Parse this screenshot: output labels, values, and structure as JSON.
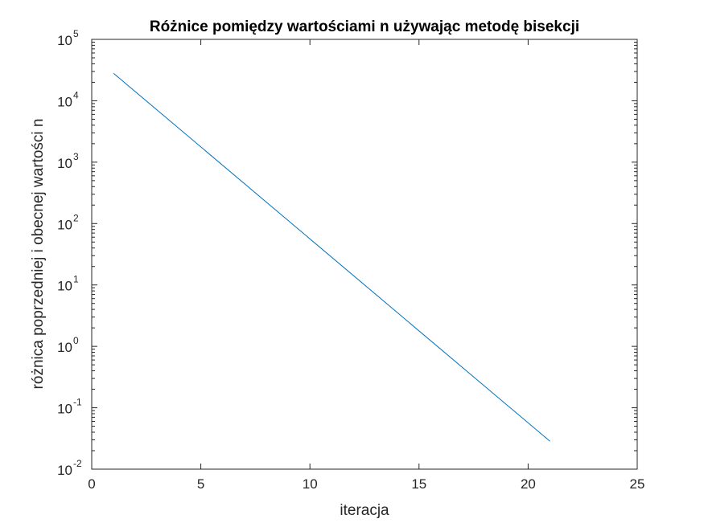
{
  "chart_data": {
    "type": "line",
    "title": "Różnice pomiędzy wartościami n używając metodę bisekcji",
    "xlabel": "iteracja",
    "ylabel": "różnica poprzedniej i obecnej wartości n",
    "xlim": [
      0,
      25
    ],
    "ylim": [
      0.01,
      100000
    ],
    "yscale": "log",
    "grid": false,
    "xticks": [
      0,
      5,
      10,
      15,
      20,
      25
    ],
    "xtick_labels": [
      "0",
      "5",
      "10",
      "15",
      "20",
      "25"
    ],
    "yticks": [
      0.01,
      0.1,
      1,
      10,
      100,
      1000,
      10000,
      100000
    ],
    "ytick_labels": [
      {
        "base": "10",
        "exp": "-2"
      },
      {
        "base": "10",
        "exp": "-1"
      },
      {
        "base": "10",
        "exp": "0"
      },
      {
        "base": "10",
        "exp": "1"
      },
      {
        "base": "10",
        "exp": "2"
      },
      {
        "base": "10",
        "exp": "3"
      },
      {
        "base": "10",
        "exp": "4"
      },
      {
        "base": "10",
        "exp": "5"
      }
    ],
    "series": [
      {
        "color": "#0072BD",
        "x": [
          1,
          21
        ],
        "y": [
          28000,
          0.0285
        ]
      }
    ]
  }
}
